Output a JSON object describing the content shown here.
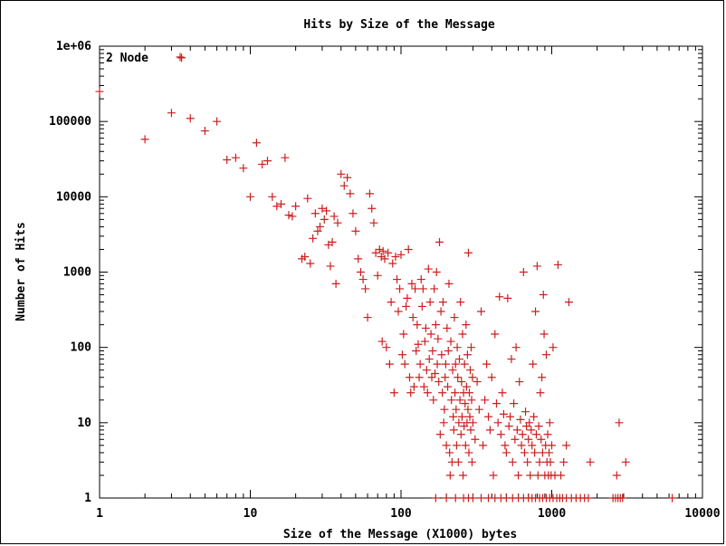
{
  "chart_data": {
    "type": "scatter",
    "title": "Hits by Size of the Message",
    "xlabel": "Size of the Message (X1000) bytes",
    "ylabel": "Number of Hits",
    "xscale": "log",
    "yscale": "log",
    "xlim": [
      1,
      10000
    ],
    "ylim": [
      1,
      1000000
    ],
    "xticks": [
      "1",
      "10",
      "100",
      "1000",
      "10000"
    ],
    "yticks": [
      "1",
      "10",
      "100",
      "1000",
      "10000",
      "100000",
      "1e+06"
    ],
    "grid": false,
    "legend_position": "top-left",
    "marker": "+",
    "color": "#cc1f1f",
    "series": [
      {
        "name": "2 Node",
        "points": [
          [
            1,
            250000
          ],
          [
            3.5,
            700000
          ],
          [
            2,
            58000
          ],
          [
            3,
            130000
          ],
          [
            4,
            110000
          ],
          [
            5,
            75000
          ],
          [
            6,
            100000
          ],
          [
            7,
            31000
          ],
          [
            8,
            33000
          ],
          [
            9,
            24000
          ],
          [
            11,
            52000
          ],
          [
            12,
            27000
          ],
          [
            13,
            30000
          ],
          [
            17,
            33000
          ],
          [
            10,
            10000
          ],
          [
            14,
            10000
          ],
          [
            15,
            7500
          ],
          [
            16,
            8000
          ],
          [
            18,
            5700
          ],
          [
            19,
            5500
          ],
          [
            20,
            7500
          ],
          [
            22,
            1500
          ],
          [
            23,
            1600
          ],
          [
            24,
            9500
          ],
          [
            25,
            1300
          ],
          [
            26,
            2800
          ],
          [
            27,
            6000
          ],
          [
            28,
            3500
          ],
          [
            29,
            4000
          ],
          [
            30,
            7000
          ],
          [
            31,
            5000
          ],
          [
            32,
            6500
          ],
          [
            33,
            2300
          ],
          [
            34,
            1200
          ],
          [
            35,
            2500
          ],
          [
            36,
            5500
          ],
          [
            37,
            700
          ],
          [
            38,
            4500
          ],
          [
            40,
            20000
          ],
          [
            42,
            14000
          ],
          [
            44,
            18000
          ],
          [
            46,
            11000
          ],
          [
            48,
            6000
          ],
          [
            50,
            3500
          ],
          [
            52,
            1500
          ],
          [
            54,
            1000
          ],
          [
            56,
            800
          ],
          [
            58,
            600
          ],
          [
            60,
            250
          ],
          [
            62,
            11000
          ],
          [
            64,
            7000
          ],
          [
            66,
            4500
          ],
          [
            68,
            1800
          ],
          [
            70,
            900
          ],
          [
            72,
            2000
          ],
          [
            74,
            1600
          ],
          [
            75,
            120
          ],
          [
            76,
            1900
          ],
          [
            78,
            1500
          ],
          [
            80,
            100
          ],
          [
            82,
            1800
          ],
          [
            84,
            60
          ],
          [
            86,
            400
          ],
          [
            88,
            1300
          ],
          [
            90,
            25
          ],
          [
            92,
            1600
          ],
          [
            94,
            800
          ],
          [
            96,
            300
          ],
          [
            98,
            600
          ],
          [
            100,
            1700
          ],
          [
            102,
            80
          ],
          [
            104,
            150
          ],
          [
            106,
            60
          ],
          [
            108,
            350
          ],
          [
            110,
            450
          ],
          [
            112,
            2000
          ],
          [
            114,
            40
          ],
          [
            116,
            25
          ],
          [
            118,
            700
          ],
          [
            120,
            250
          ],
          [
            122,
            30
          ],
          [
            124,
            600
          ],
          [
            126,
            90
          ],
          [
            128,
            200
          ],
          [
            130,
            110
          ],
          [
            132,
            40
          ],
          [
            134,
            60
          ],
          [
            136,
            800
          ],
          [
            138,
            350
          ],
          [
            140,
            600
          ],
          [
            142,
            30
          ],
          [
            144,
            120
          ],
          [
            146,
            180
          ],
          [
            148,
            50
          ],
          [
            150,
            25
          ],
          [
            152,
            1100
          ],
          [
            154,
            70
          ],
          [
            156,
            400
          ],
          [
            158,
            150
          ],
          [
            160,
            40
          ],
          [
            162,
            90
          ],
          [
            164,
            20
          ],
          [
            166,
            600
          ],
          [
            168,
            45
          ],
          [
            170,
            200
          ],
          [
            172,
            1000
          ],
          [
            174,
            60
          ],
          [
            176,
            130
          ],
          [
            178,
            35
          ],
          [
            180,
            2500
          ],
          [
            182,
            7
          ],
          [
            184,
            300
          ],
          [
            186,
            80
          ],
          [
            188,
            25
          ],
          [
            190,
            400
          ],
          [
            192,
            10
          ],
          [
            194,
            15
          ],
          [
            196,
            40
          ],
          [
            198,
            60
          ],
          [
            200,
            5
          ],
          [
            202,
            180
          ],
          [
            204,
            30
          ],
          [
            206,
            90
          ],
          [
            208,
            700
          ],
          [
            210,
            4
          ],
          [
            212,
            2
          ],
          [
            214,
            120
          ],
          [
            216,
            20
          ],
          [
            218,
            3
          ],
          [
            220,
            50
          ],
          [
            222,
            12
          ],
          [
            224,
            8
          ],
          [
            226,
            250
          ],
          [
            228,
            25
          ],
          [
            230,
            60
          ],
          [
            232,
            15
          ],
          [
            234,
            5
          ],
          [
            236,
            100
          ],
          [
            238,
            40
          ],
          [
            240,
            3
          ],
          [
            242,
            10
          ],
          [
            244,
            70
          ],
          [
            246,
            20
          ],
          [
            248,
            400
          ],
          [
            250,
            7
          ],
          [
            252,
            35
          ],
          [
            254,
            12
          ],
          [
            256,
            150
          ],
          [
            258,
            2
          ],
          [
            260,
            25
          ],
          [
            262,
            9
          ],
          [
            264,
            60
          ],
          [
            266,
            18
          ],
          [
            268,
            5
          ],
          [
            270,
            200
          ],
          [
            272,
            30
          ],
          [
            274,
            10
          ],
          [
            276,
            80
          ],
          [
            278,
            15
          ],
          [
            280,
            1800
          ],
          [
            282,
            4
          ],
          [
            284,
            25
          ],
          [
            286,
            12
          ],
          [
            288,
            50
          ],
          [
            290,
            8
          ],
          [
            292,
            100
          ],
          [
            294,
            20
          ],
          [
            296,
            3
          ],
          [
            298,
            40
          ],
          [
            300,
            10
          ],
          [
            310,
            6
          ],
          [
            320,
            35
          ],
          [
            330,
            15
          ],
          [
            340,
            300
          ],
          [
            350,
            5
          ],
          [
            360,
            20
          ],
          [
            370,
            60
          ],
          [
            380,
            12
          ],
          [
            390,
            8
          ],
          [
            400,
            40
          ],
          [
            410,
            2
          ],
          [
            420,
            150
          ],
          [
            430,
            18
          ],
          [
            440,
            10
          ],
          [
            450,
            470
          ],
          [
            460,
            7
          ],
          [
            470,
            25
          ],
          [
            480,
            13
          ],
          [
            490,
            5
          ],
          [
            500,
            4
          ],
          [
            510,
            450
          ],
          [
            520,
            9
          ],
          [
            530,
            12
          ],
          [
            540,
            70
          ],
          [
            550,
            3
          ],
          [
            560,
            18
          ],
          [
            570,
            6
          ],
          [
            580,
            100
          ],
          [
            590,
            8
          ],
          [
            600,
            2
          ],
          [
            610,
            35
          ],
          [
            620,
            11
          ],
          [
            630,
            5
          ],
          [
            640,
            7
          ],
          [
            650,
            1000
          ],
          [
            660,
            4
          ],
          [
            670,
            14
          ],
          [
            680,
            9
          ],
          [
            690,
            3
          ],
          [
            700,
            6
          ],
          [
            710,
            10
          ],
          [
            720,
            2
          ],
          [
            730,
            8
          ],
          [
            740,
            5
          ],
          [
            750,
            60
          ],
          [
            760,
            12
          ],
          [
            770,
            4
          ],
          [
            780,
            300
          ],
          [
            790,
            7
          ],
          [
            800,
            1200
          ],
          [
            810,
            2
          ],
          [
            820,
            9
          ],
          [
            830,
            3
          ],
          [
            840,
            25
          ],
          [
            850,
            6
          ],
          [
            860,
            40
          ],
          [
            870,
            4
          ],
          [
            880,
            500
          ],
          [
            890,
            150
          ],
          [
            900,
            2
          ],
          [
            910,
            5
          ],
          [
            920,
            80
          ],
          [
            930,
            3
          ],
          [
            940,
            7
          ],
          [
            950,
            2
          ],
          [
            960,
            4
          ],
          [
            970,
            10
          ],
          [
            980,
            3
          ],
          [
            990,
            2
          ],
          [
            1000,
            5
          ],
          [
            1020,
            100
          ],
          [
            1050,
            2
          ],
          [
            1100,
            1250
          ],
          [
            1150,
            2
          ],
          [
            1200,
            3
          ],
          [
            1250,
            5
          ],
          [
            1300,
            400
          ],
          [
            1800,
            3
          ],
          [
            2700,
            2
          ],
          [
            2800,
            10
          ],
          [
            3100,
            3
          ]
        ],
        "floor_x": [
          170,
          200,
          230,
          260,
          280,
          300,
          340,
          380,
          420,
          460,
          500,
          550,
          600,
          650,
          700,
          740,
          780,
          830,
          870,
          920,
          970,
          1020,
          1080,
          1130,
          1180,
          1250,
          1350,
          1450,
          1550,
          1650,
          1750,
          2550,
          2650,
          2750,
          2850,
          2950,
          6300
        ]
      }
    ]
  }
}
